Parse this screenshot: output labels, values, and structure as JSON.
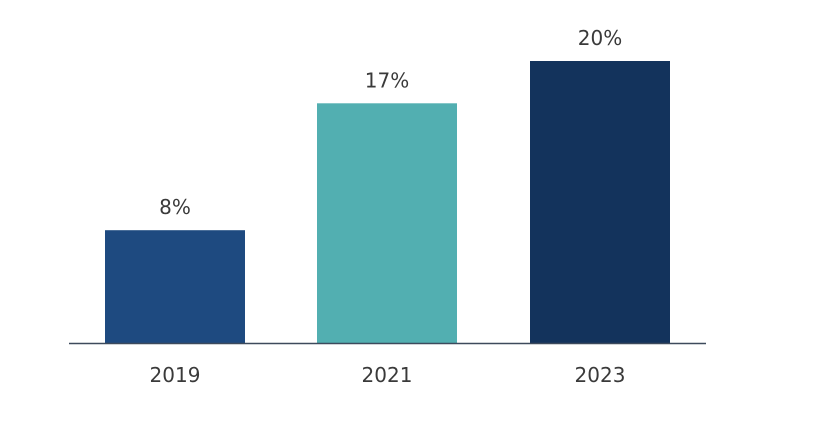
{
  "chart_data": {
    "type": "bar",
    "categories": [
      "2019",
      "2021",
      "2023"
    ],
    "values": [
      8,
      17,
      20
    ],
    "data_labels": [
      "8%",
      "17%",
      "20%"
    ],
    "colors": [
      "#1e4a80",
      "#52afb1",
      "#13335c"
    ],
    "axis_color": "#3d4a5c",
    "ylim": [
      0,
      20
    ],
    "grid": false,
    "legend": "none",
    "title": "",
    "xlabel": "",
    "ylabel": ""
  }
}
